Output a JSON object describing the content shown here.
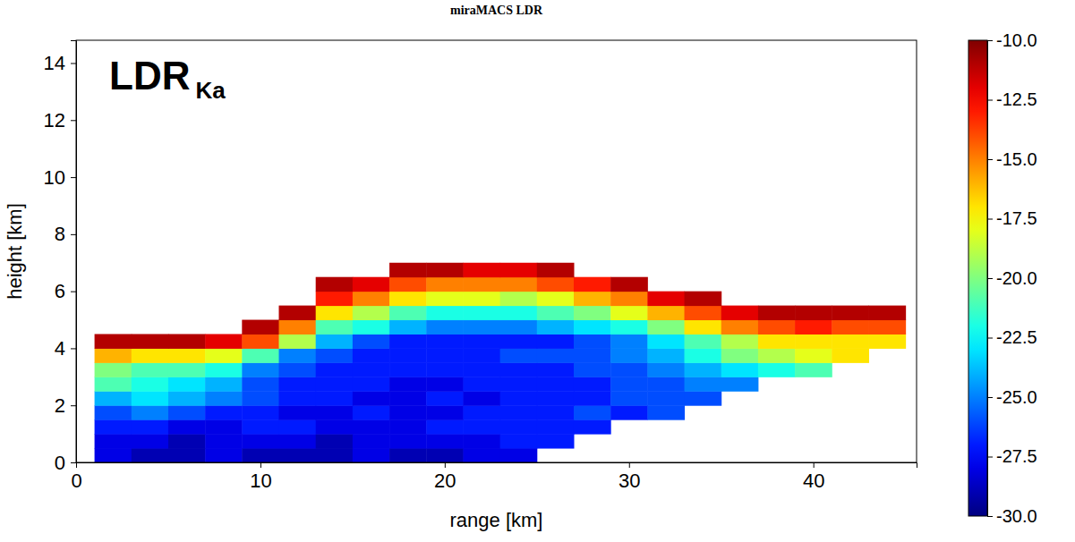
{
  "chart_data": {
    "type": "heatmap",
    "title": "miraMACS LDR",
    "annotation": {
      "text": "LDR",
      "subscript": "Ka"
    },
    "xlabel": "range [km]",
    "ylabel": "height [km]",
    "xlim": [
      0,
      45.6
    ],
    "xticks": [
      0,
      10,
      20,
      30,
      40
    ],
    "ylim": [
      0,
      14.8
    ],
    "yticks": [
      0,
      2,
      4,
      6,
      8,
      10,
      12,
      14
    ],
    "x_edges": [
      1,
      3,
      5,
      7,
      9,
      11,
      13,
      15,
      17,
      19,
      21,
      23,
      25,
      27,
      29,
      31,
      33,
      35,
      37,
      39,
      41,
      43,
      45
    ],
    "y_edges": [
      0,
      0.5,
      1,
      1.5,
      2,
      2.5,
      3,
      3.5,
      4,
      4.5,
      5,
      5.5,
      6,
      6.5,
      7
    ],
    "cells": [
      [
        -28,
        -29,
        -29,
        -28,
        -29,
        -29,
        -29,
        -28,
        -29,
        -29,
        -28,
        -28,
        null,
        null,
        null,
        null,
        null,
        null,
        null,
        null,
        null,
        null
      ],
      [
        -28,
        -28,
        -29,
        -28,
        -28,
        -28,
        -29,
        -28,
        -28,
        -28,
        -28,
        -27,
        -27,
        null,
        null,
        null,
        null,
        null,
        null,
        null,
        null,
        null
      ],
      [
        -27,
        -27,
        -28,
        -28,
        -27,
        -27,
        -28,
        -28,
        -28,
        -27,
        -27,
        -27,
        -27,
        -27,
        null,
        null,
        null,
        null,
        null,
        null,
        null,
        null
      ],
      [
        -26,
        -25,
        -26,
        -27,
        -27,
        -28,
        -28,
        -27,
        -28,
        -28,
        -27,
        -27,
        -27,
        -26,
        -27,
        -26,
        null,
        null,
        null,
        null,
        null,
        null
      ],
      [
        -24,
        -23,
        -24,
        -25,
        -26,
        -27,
        -27,
        -28,
        -28,
        -27,
        -28,
        -27,
        -27,
        -27,
        -26,
        -26,
        -26,
        null,
        null,
        null,
        null,
        null
      ],
      [
        -21,
        -22,
        -23,
        -24,
        -26,
        -27,
        -27,
        -27,
        -28,
        -28,
        -27,
        -27,
        -27,
        -27,
        -26,
        -26,
        -25,
        -25,
        null,
        null,
        null,
        null
      ],
      [
        -20,
        -21,
        -21,
        -22,
        -25,
        -26,
        -27,
        -27,
        -27,
        -27,
        -27,
        -27,
        -27,
        -26,
        -26,
        -25,
        -24,
        -23,
        -22,
        -21,
        null,
        null
      ],
      [
        -16,
        -17,
        -17,
        -18,
        -21,
        -25,
        -26,
        -27,
        -27,
        -27,
        -27,
        -26,
        -26,
        -26,
        -25,
        -24,
        -22,
        -20,
        -19,
        -18,
        -17,
        null
      ],
      [
        -11,
        -11,
        -11,
        -12,
        -14,
        -19,
        -24,
        -26,
        -27,
        -27,
        -27,
        -27,
        -27,
        -26,
        -25,
        -23,
        -21,
        -19,
        -17,
        -17,
        -17,
        -17
      ],
      [
        null,
        null,
        null,
        null,
        -11,
        -15,
        -21,
        -22,
        -24,
        -25,
        -25,
        -25,
        -24,
        -23,
        -22,
        -20,
        -17,
        -15,
        -14,
        -13,
        -14,
        -14
      ],
      [
        null,
        null,
        null,
        null,
        null,
        -11,
        -17,
        -19,
        -21,
        -22,
        -22,
        -22,
        -21,
        -20,
        -18,
        -16,
        -14,
        -12,
        -11,
        -11,
        -11,
        -11
      ],
      [
        null,
        null,
        null,
        null,
        null,
        null,
        -13,
        -15,
        -17,
        -18,
        -18,
        -19,
        -18,
        -16,
        -15,
        -12,
        -11,
        null,
        null,
        null,
        null,
        null
      ],
      [
        null,
        null,
        null,
        null,
        null,
        null,
        -11,
        -12,
        -14,
        -15,
        -15,
        -15,
        -14,
        -13,
        -11,
        null,
        null,
        null,
        null,
        null,
        null,
        null
      ],
      [
        null,
        null,
        null,
        null,
        null,
        null,
        null,
        null,
        -11,
        -11,
        -12,
        -12,
        -11,
        null,
        null,
        null,
        null,
        null,
        null,
        null,
        null,
        null
      ]
    ],
    "colorbar_range": [
      -30,
      -10
    ],
    "colorbar_ticks": [
      {
        "value": -10,
        "label": "-10.0"
      },
      {
        "value": -12.5,
        "label": "-12.5"
      },
      {
        "value": -15,
        "label": "-15.0"
      },
      {
        "value": -17.5,
        "label": "-17.5"
      },
      {
        "value": -20,
        "label": "-20.0"
      },
      {
        "value": -22.5,
        "label": "-22.5"
      },
      {
        "value": -25,
        "label": "-25.0"
      },
      {
        "value": -27.5,
        "label": "-27.5"
      },
      {
        "value": -30,
        "label": "-30.0"
      }
    ]
  }
}
